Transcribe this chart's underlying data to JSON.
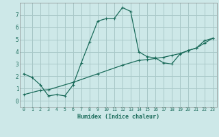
{
  "title": "",
  "xlabel": "Humidex (Indice chaleur)",
  "bg_color": "#cde8e8",
  "grid_color": "#a8c8c8",
  "line_color": "#1a6b5a",
  "xlim": [
    -0.5,
    23.5
  ],
  "ylim": [
    -0.5,
    8.0
  ],
  "xticks": [
    0,
    1,
    2,
    3,
    4,
    5,
    6,
    7,
    8,
    9,
    10,
    11,
    12,
    13,
    14,
    15,
    16,
    17,
    18,
    19,
    20,
    21,
    22,
    23
  ],
  "yticks": [
    0,
    1,
    2,
    3,
    4,
    5,
    6,
    7
  ],
  "line1_x": [
    0,
    1,
    2,
    3,
    4,
    5,
    6,
    7,
    8,
    9,
    10,
    11,
    12,
    13,
    14,
    15,
    16,
    17,
    18,
    19,
    20,
    21,
    22,
    23
  ],
  "line1_y": [
    2.2,
    1.9,
    1.3,
    0.4,
    0.5,
    0.4,
    1.3,
    3.1,
    4.8,
    6.5,
    6.7,
    6.7,
    7.6,
    7.3,
    4.0,
    3.6,
    3.5,
    3.1,
    3.0,
    3.8,
    4.1,
    4.3,
    4.9,
    5.1
  ],
  "line2_x": [
    0,
    2,
    3,
    6,
    9,
    12,
    14,
    15,
    16,
    17,
    18,
    19,
    20,
    21,
    22,
    23
  ],
  "line2_y": [
    0.5,
    0.85,
    0.9,
    1.5,
    2.2,
    2.9,
    3.3,
    3.35,
    3.45,
    3.55,
    3.7,
    3.85,
    4.1,
    4.3,
    4.7,
    5.1
  ]
}
